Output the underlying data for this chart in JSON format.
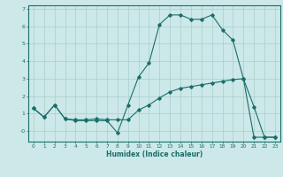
{
  "xlabel": "Humidex (Indice chaleur)",
  "bg_color": "#cce8e8",
  "line_color": "#1a6e6a",
  "grid_color": "#aacece",
  "xlim": [
    -0.5,
    23.5
  ],
  "ylim": [
    -0.6,
    7.2
  ],
  "line1_x": [
    0,
    1,
    2,
    3,
    4,
    5,
    6,
    7,
    8,
    9,
    10,
    11,
    12,
    13,
    14,
    15,
    16,
    17,
    18,
    19,
    20,
    21,
    22,
    23
  ],
  "line1_y": [
    1.3,
    0.8,
    1.5,
    0.7,
    0.6,
    0.6,
    0.6,
    0.6,
    -0.1,
    1.5,
    3.1,
    3.9,
    6.1,
    6.65,
    6.65,
    6.4,
    6.4,
    6.65,
    5.8,
    5.2,
    3.0,
    1.4,
    -0.35,
    -0.35
  ],
  "line2_x": [
    0,
    1,
    2,
    3,
    4,
    5,
    6,
    7,
    8,
    9,
    10,
    11,
    12,
    13,
    14,
    15,
    16,
    17,
    18,
    19,
    20,
    21,
    22,
    23
  ],
  "line2_y": [
    1.3,
    0.8,
    1.5,
    0.7,
    0.65,
    0.65,
    0.7,
    0.65,
    0.65,
    0.65,
    1.2,
    1.5,
    1.9,
    2.25,
    2.45,
    2.55,
    2.65,
    2.75,
    2.85,
    2.95,
    3.0,
    -0.35,
    -0.35,
    -0.35
  ],
  "xticks": [
    0,
    1,
    2,
    3,
    4,
    5,
    6,
    7,
    8,
    9,
    10,
    11,
    12,
    13,
    14,
    15,
    16,
    17,
    18,
    19,
    20,
    21,
    22,
    23
  ],
  "yticks": [
    0,
    1,
    2,
    3,
    4,
    5,
    6,
    7
  ],
  "ytick_labels": [
    "-0",
    "1",
    "2",
    "3",
    "4",
    "5",
    "6",
    "7"
  ]
}
